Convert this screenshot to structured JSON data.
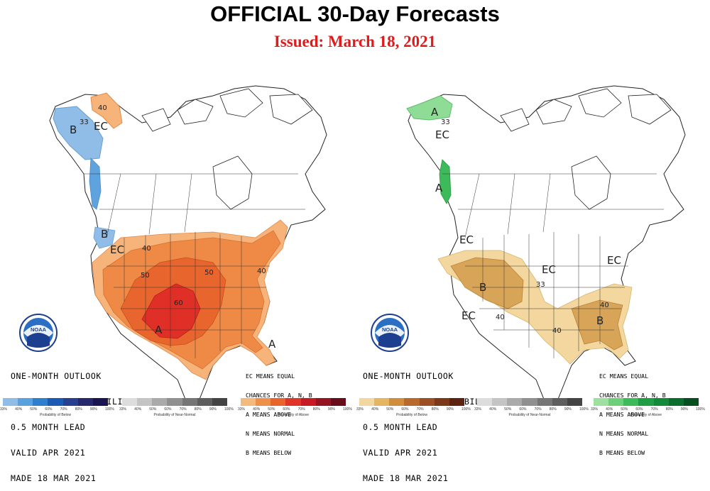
{
  "title": "OFFICIAL 30-Day Forecasts",
  "issued": "Issued: March 18, 2021",
  "temperature_map": {
    "info_lines": [
      "ONE-MONTH OUTLOOK",
      "TEMPERATURE PROBABILITY",
      "0.5 MONTH LEAD",
      "VALID APR 2021",
      "MADE 18 MAR 2021"
    ],
    "key_lines": [
      "EC MEANS EQUAL",
      "CHANCES FOR A, N, B",
      "A MEANS ABOVE",
      "N MEANS NORMAL",
      "B MEANS BELOW"
    ],
    "labels": [
      "B",
      "EC",
      "40",
      "33",
      "B",
      "EC",
      "40",
      "50",
      "60",
      "50",
      "40",
      "A",
      "A"
    ],
    "logo_text": "NOAA"
  },
  "precipitation_map": {
    "info_lines": [
      "ONE-MONTH OUTLOOK",
      "PRECIPITATION PROBABILITY",
      "0.5 MONTH LEAD",
      "VALID APR 2021",
      "MADE 18 MAR 2021"
    ],
    "key_lines": [
      "EC MEANS EQUAL",
      "CHANCES FOR A, N, B",
      "A MEANS ABOVE",
      "N MEANS NORMAL",
      "B MEANS BELOW"
    ],
    "labels": [
      "A",
      "33",
      "EC",
      "A",
      "EC",
      "B",
      "EC",
      "EC",
      "EC",
      "33",
      "40",
      "40",
      "B",
      "40"
    ],
    "logo_text": "NOAA"
  },
  "legends": [
    {
      "caption": "Probability of Below",
      "ticks": [
        "33%",
        "40%",
        "50%",
        "60%",
        "70%",
        "80%",
        "90%",
        "100%"
      ],
      "colors": [
        "#8fbde8",
        "#5aa2de",
        "#2f7fcf",
        "#1c5bb5",
        "#283f8f",
        "#26286b",
        "#1a1450"
      ]
    },
    {
      "caption": "Probability of Near-Normal",
      "ticks": [
        "33%",
        "40%",
        "50%",
        "60%",
        "70%",
        "80%",
        "90%",
        "100%"
      ],
      "colors": [
        "#dddddd",
        "#c4c4c4",
        "#aaaaaa",
        "#909090",
        "#767676",
        "#5e5e5e",
        "#444444"
      ]
    },
    {
      "caption": "Probability of Above",
      "ticks": [
        "33%",
        "40%",
        "50%",
        "60%",
        "70%",
        "80%",
        "90%",
        "100%"
      ],
      "colors": [
        "#f4b97d",
        "#ee8f4a",
        "#e8642c",
        "#e03428",
        "#c81a24",
        "#961422",
        "#6a0d1a"
      ]
    },
    {
      "caption": "Probability of Below",
      "ticks": [
        "33%",
        "40%",
        "50%",
        "60%",
        "70%",
        "80%",
        "90%",
        "100%"
      ],
      "colors": [
        "#f2d7a0",
        "#e4b664",
        "#d08d3c",
        "#b86a2c",
        "#9c4f22",
        "#7c3818",
        "#5c2410"
      ]
    },
    {
      "caption": "Probability of Near-Normal",
      "ticks": [
        "33%",
        "40%",
        "50%",
        "60%",
        "70%",
        "80%",
        "90%",
        "100%"
      ],
      "colors": [
        "#dddddd",
        "#c4c4c4",
        "#aaaaaa",
        "#909090",
        "#767676",
        "#5e5e5e",
        "#444444"
      ]
    },
    {
      "caption": "Probability of Above",
      "ticks": [
        "33%",
        "40%",
        "50%",
        "60%",
        "70%",
        "80%",
        "90%",
        "100%"
      ],
      "colors": [
        "#9de0a0",
        "#6ccf7a",
        "#3dba5a",
        "#1f9e46",
        "#128a3a",
        "#0c6e2e",
        "#074f20"
      ]
    }
  ],
  "colors": {
    "temp_above_33": "#f6b37a",
    "temp_above_40": "#ef8a46",
    "temp_above_50": "#e8652e",
    "temp_above_60": "#e02f26",
    "temp_below_33": "#8fbde8",
    "temp_below_40": "#5ea3de",
    "precip_below_33": "#f3d79e",
    "precip_below_40": "#d8a458",
    "precip_above_33": "#8fdc96",
    "title_red": "#e01b1b"
  }
}
